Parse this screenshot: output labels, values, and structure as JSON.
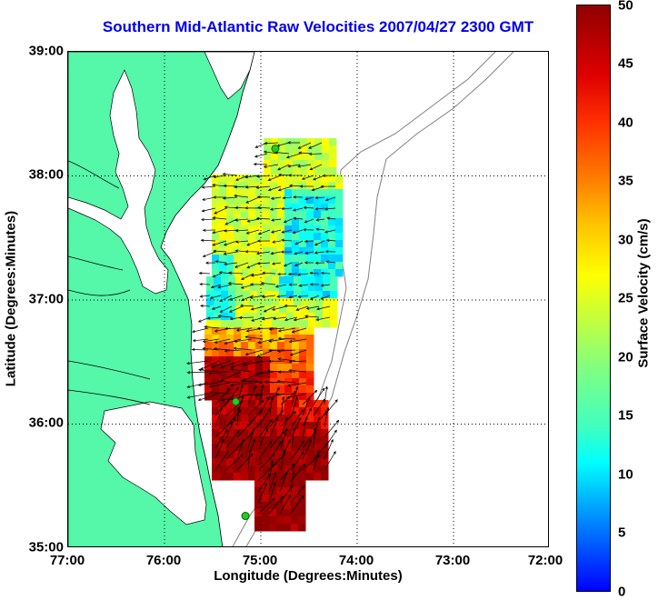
{
  "title": "Southern Mid-Atlantic Raw Velocities 2007/04/27 2300 GMT",
  "xlabel": "Longitude (Degrees:Minutes)",
  "ylabel": "Latitude (Degrees:Minutes)",
  "x_ticks": [
    "77:00",
    "76:00",
    "75:00",
    "74:00",
    "73:00",
    "72:00"
  ],
  "y_ticks": [
    "39:00",
    "38:00",
    "37:00",
    "36:00",
    "35:00"
  ],
  "colorbar": {
    "label": "Surface Velocity (cm/s)",
    "ticks": [
      "50",
      "45",
      "40",
      "35",
      "30",
      "25",
      "20",
      "15",
      "10",
      "5",
      "0"
    ],
    "range": [
      0,
      50
    ]
  },
  "map_extent": {
    "lon": [
      -77,
      -72
    ],
    "lat": [
      35,
      39
    ]
  },
  "colors": {
    "land": "#55f7a8",
    "water": "#ffffff",
    "coastline": "#000000",
    "bathymetry": "#808080",
    "grid": "#000000",
    "title": "#0000ee",
    "stations": "#22cc22"
  },
  "stations": [
    {
      "lon": -74.85,
      "lat": 38.22
    },
    {
      "lon": -75.26,
      "lat": 36.18
    },
    {
      "lon": -75.16,
      "lat": 35.26
    }
  ]
}
